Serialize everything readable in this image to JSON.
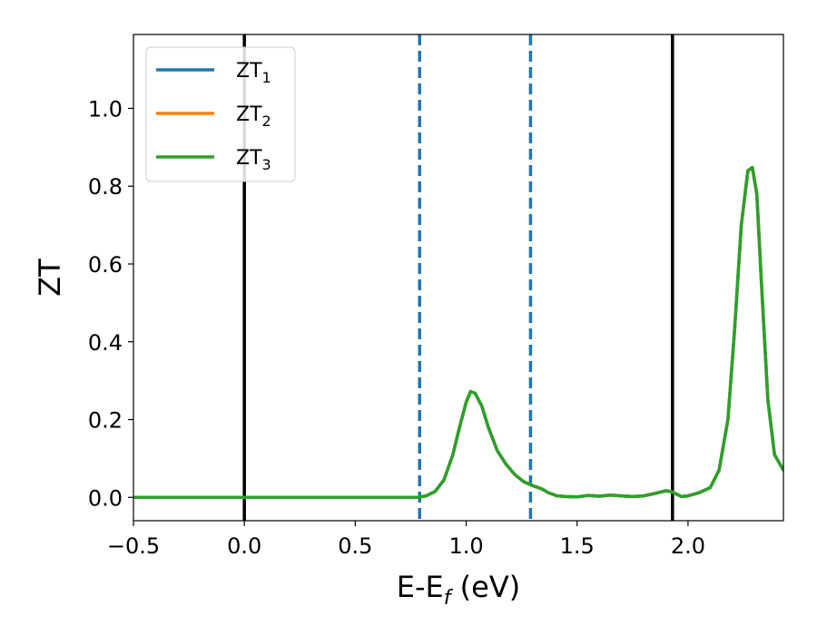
{
  "chart_data": {
    "type": "line",
    "xlabel": {
      "main": "E-E",
      "sub": "f",
      "rest": " (eV)"
    },
    "ylabel": "ZT",
    "xlim": [
      -0.5,
      2.43
    ],
    "ylim": [
      -0.06,
      1.19
    ],
    "xticks": [
      {
        "value": -0.5,
        "label": "−0.5"
      },
      {
        "value": 0.0,
        "label": "0.0"
      },
      {
        "value": 0.5,
        "label": "0.5"
      },
      {
        "value": 1.0,
        "label": "1.0"
      },
      {
        "value": 1.5,
        "label": "1.5"
      },
      {
        "value": 2.0,
        "label": "2.0"
      }
    ],
    "yticks": [
      {
        "value": 0.0,
        "label": "0.0"
      },
      {
        "value": 0.2,
        "label": "0.2"
      },
      {
        "value": 0.4,
        "label": "0.4"
      },
      {
        "value": 0.6,
        "label": "0.6"
      },
      {
        "value": 0.8,
        "label": "0.8"
      },
      {
        "value": 1.0,
        "label": "1.0"
      }
    ],
    "grid": false,
    "legend_position": "upper-left",
    "vlines": [
      {
        "x": 0.0,
        "style": "solid",
        "color": "#000000"
      },
      {
        "x": 1.93,
        "style": "solid",
        "color": "#000000"
      },
      {
        "x": 0.79,
        "style": "dashed",
        "color": "#1f77b4"
      },
      {
        "x": 1.29,
        "style": "dashed",
        "color": "#1f77b4"
      }
    ],
    "series": [
      {
        "name": "ZT",
        "sub": "1",
        "color": "#1f77b4",
        "x": [
          -0.5,
          0.0,
          0.5,
          0.78,
          0.82,
          0.86,
          0.9,
          0.94,
          0.97,
          1.0,
          1.02,
          1.04,
          1.07,
          1.1,
          1.14,
          1.18,
          1.22,
          1.26,
          1.3,
          1.34,
          1.37,
          1.41,
          1.45,
          1.5,
          1.55,
          1.6,
          1.65,
          1.7,
          1.75,
          1.8,
          1.85,
          1.9,
          1.93,
          1.97,
          2.0,
          2.05,
          2.1,
          2.14,
          2.18,
          2.21,
          2.24,
          2.27,
          2.29,
          2.31,
          2.33,
          2.36,
          2.39,
          2.43
        ],
        "y": [
          0.0,
          0.0,
          0.0,
          0.0,
          0.004,
          0.015,
          0.045,
          0.11,
          0.18,
          0.245,
          0.272,
          0.268,
          0.235,
          0.18,
          0.12,
          0.085,
          0.058,
          0.04,
          0.03,
          0.022,
          0.012,
          0.004,
          0.002,
          0.001,
          0.005,
          0.003,
          0.006,
          0.004,
          0.002,
          0.004,
          0.01,
          0.017,
          0.014,
          0.002,
          0.004,
          0.012,
          0.025,
          0.07,
          0.2,
          0.43,
          0.7,
          0.84,
          0.848,
          0.78,
          0.56,
          0.25,
          0.11,
          0.07
        ]
      },
      {
        "name": "ZT",
        "sub": "2",
        "color": "#ff7f0e",
        "x": [
          -0.5,
          0.0,
          0.5,
          0.78,
          0.82,
          0.86,
          0.9,
          0.94,
          0.97,
          1.0,
          1.02,
          1.04,
          1.07,
          1.1,
          1.14,
          1.18,
          1.22,
          1.26,
          1.3,
          1.34,
          1.37,
          1.41,
          1.45,
          1.5,
          1.55,
          1.6,
          1.65,
          1.7,
          1.75,
          1.8,
          1.85,
          1.9,
          1.93,
          1.97,
          2.0,
          2.05,
          2.1,
          2.14,
          2.18,
          2.21,
          2.24,
          2.27,
          2.29,
          2.31,
          2.33,
          2.36,
          2.39,
          2.43
        ],
        "y": [
          0.0,
          0.0,
          0.0,
          0.0,
          0.004,
          0.015,
          0.045,
          0.11,
          0.18,
          0.245,
          0.272,
          0.268,
          0.235,
          0.18,
          0.12,
          0.085,
          0.058,
          0.04,
          0.03,
          0.022,
          0.012,
          0.004,
          0.002,
          0.001,
          0.005,
          0.003,
          0.006,
          0.004,
          0.002,
          0.004,
          0.01,
          0.017,
          0.014,
          0.002,
          0.004,
          0.012,
          0.025,
          0.07,
          0.2,
          0.43,
          0.7,
          0.84,
          0.848,
          0.78,
          0.56,
          0.25,
          0.11,
          0.07
        ]
      },
      {
        "name": "ZT",
        "sub": "3",
        "color": "#2ca02c",
        "x": [
          -0.5,
          0.0,
          0.5,
          0.78,
          0.82,
          0.86,
          0.9,
          0.94,
          0.97,
          1.0,
          1.02,
          1.04,
          1.07,
          1.1,
          1.14,
          1.18,
          1.22,
          1.26,
          1.3,
          1.34,
          1.37,
          1.41,
          1.45,
          1.5,
          1.55,
          1.6,
          1.65,
          1.7,
          1.75,
          1.8,
          1.85,
          1.9,
          1.93,
          1.97,
          2.0,
          2.05,
          2.1,
          2.14,
          2.18,
          2.21,
          2.24,
          2.27,
          2.29,
          2.31,
          2.33,
          2.36,
          2.39,
          2.43
        ],
        "y": [
          0.0,
          0.0,
          0.0,
          0.0,
          0.004,
          0.015,
          0.045,
          0.11,
          0.18,
          0.245,
          0.272,
          0.268,
          0.235,
          0.18,
          0.12,
          0.085,
          0.058,
          0.04,
          0.03,
          0.022,
          0.012,
          0.004,
          0.002,
          0.001,
          0.005,
          0.003,
          0.006,
          0.004,
          0.002,
          0.004,
          0.01,
          0.017,
          0.014,
          0.002,
          0.004,
          0.012,
          0.025,
          0.07,
          0.2,
          0.43,
          0.7,
          0.84,
          0.848,
          0.78,
          0.56,
          0.25,
          0.11,
          0.07
        ]
      }
    ]
  }
}
